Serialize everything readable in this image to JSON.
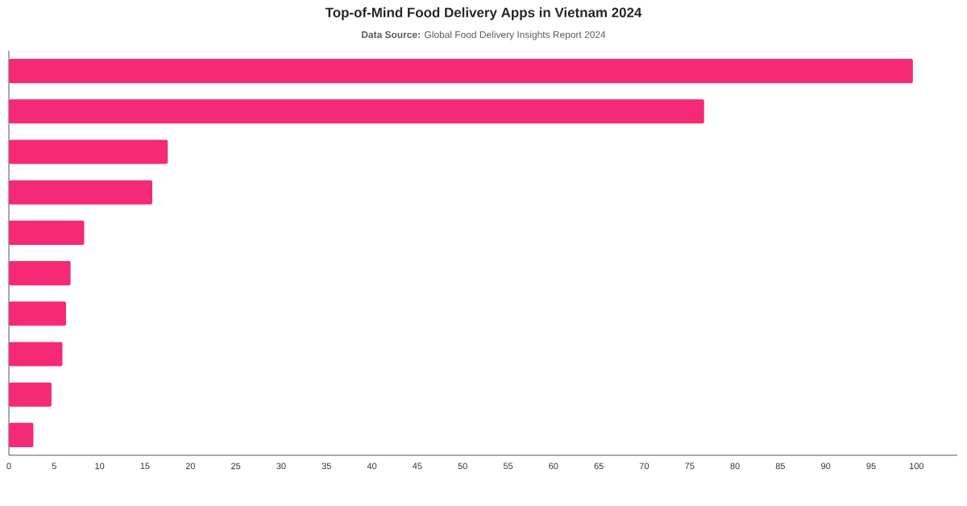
{
  "chart_data": {
    "type": "bar",
    "orientation": "horizontal",
    "title": "Top-of-Mind Food Delivery Apps in Vietnam 2024",
    "subtitle": "**Data Source:** Global Food Delivery Insights Report 2024",
    "categories": [
      null,
      null,
      null,
      null,
      null,
      null,
      null,
      null,
      null,
      null
    ],
    "values": [
      99.6,
      76.6,
      17.5,
      15.8,
      8.3,
      6.8,
      6.3,
      5.9,
      4.7,
      2.7
    ],
    "color": "#f52a76",
    "xlim": [
      0,
      104.5
    ],
    "xticks": [
      0,
      5,
      10,
      15,
      20,
      25,
      30,
      35,
      40,
      45,
      50,
      55,
      60,
      65,
      70,
      75,
      80,
      85,
      90,
      95,
      100
    ]
  }
}
